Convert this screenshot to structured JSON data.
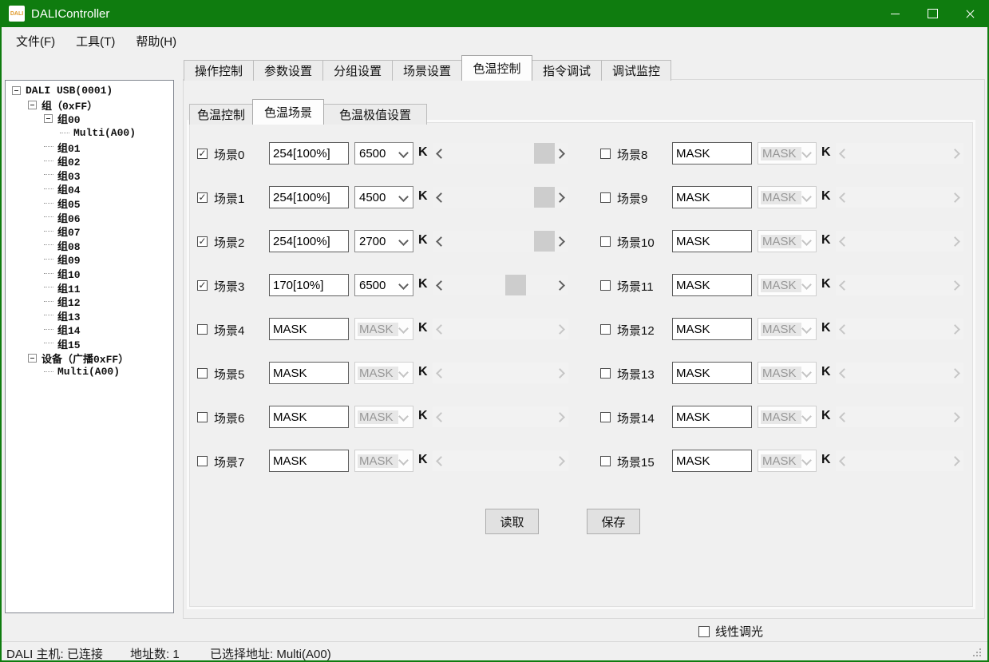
{
  "colors": {
    "title_green": "#0f7c0f"
  },
  "glyphs": {
    "check": "✓"
  },
  "titlebar": {
    "icon_text": "DALI",
    "title": "DALIController"
  },
  "menu": {
    "items": [
      "文件(F)",
      "工具(T)",
      "帮助(H)"
    ]
  },
  "tabs": {
    "active_index": 4,
    "items": [
      "操作控制",
      "参数设置",
      "分组设置",
      "场景设置",
      "色温控制",
      "指令调试",
      "调试监控"
    ]
  },
  "subtabs": {
    "active_index": 1,
    "items": [
      "色温控制",
      "色温场景",
      "色温极值设置"
    ]
  },
  "tree": {
    "items": [
      {
        "label": "DALI USB(0001)",
        "depth": 0,
        "expander": true
      },
      {
        "label": "组（0xFF）",
        "depth": 1,
        "expander": true
      },
      {
        "label": "组00",
        "depth": 2,
        "expander": true
      },
      {
        "label": "Multi(A00)",
        "depth": 3,
        "expander": false
      },
      {
        "label": "组01",
        "depth": 2,
        "expander": false
      },
      {
        "label": "组02",
        "depth": 2,
        "expander": false
      },
      {
        "label": "组03",
        "depth": 2,
        "expander": false
      },
      {
        "label": "组04",
        "depth": 2,
        "expander": false
      },
      {
        "label": "组05",
        "depth": 2,
        "expander": false
      },
      {
        "label": "组06",
        "depth": 2,
        "expander": false
      },
      {
        "label": "组07",
        "depth": 2,
        "expander": false
      },
      {
        "label": "组08",
        "depth": 2,
        "expander": false
      },
      {
        "label": "组09",
        "depth": 2,
        "expander": false
      },
      {
        "label": "组10",
        "depth": 2,
        "expander": false
      },
      {
        "label": "组11",
        "depth": 2,
        "expander": false
      },
      {
        "label": "组12",
        "depth": 2,
        "expander": false
      },
      {
        "label": "组13",
        "depth": 2,
        "expander": false
      },
      {
        "label": "组14",
        "depth": 2,
        "expander": false
      },
      {
        "label": "组15",
        "depth": 2,
        "expander": false
      },
      {
        "label": "设备（广播0xFF）",
        "depth": 1,
        "expander": true
      },
      {
        "label": "Multi(A00)",
        "depth": 2,
        "expander": false
      }
    ]
  },
  "scene_table": {
    "unit": "K",
    "scenes": [
      {
        "label": "场景0",
        "checked": true,
        "enabled": true,
        "value": "254[100%]",
        "cct": "6500",
        "slider_pos": 1
      },
      {
        "label": "场景1",
        "checked": true,
        "enabled": true,
        "value": "254[100%]",
        "cct": "4500",
        "slider_pos": 1
      },
      {
        "label": "场景2",
        "checked": true,
        "enabled": true,
        "value": "254[100%]",
        "cct": "2700",
        "slider_pos": 1
      },
      {
        "label": "场景3",
        "checked": true,
        "enabled": true,
        "value": "170[10%]",
        "cct": "6500",
        "slider_pos": 0.67
      },
      {
        "label": "场景4",
        "checked": false,
        "enabled": false,
        "value": "MASK",
        "cct": "MASK",
        "slider_pos": null
      },
      {
        "label": "场景5",
        "checked": false,
        "enabled": false,
        "value": "MASK",
        "cct": "MASK",
        "slider_pos": null
      },
      {
        "label": "场景6",
        "checked": false,
        "enabled": false,
        "value": "MASK",
        "cct": "MASK",
        "slider_pos": null
      },
      {
        "label": "场景7",
        "checked": false,
        "enabled": false,
        "value": "MASK",
        "cct": "MASK",
        "slider_pos": null
      },
      {
        "label": "场景8",
        "checked": false,
        "enabled": false,
        "value": "MASK",
        "cct": "MASK",
        "slider_pos": null
      },
      {
        "label": "场景9",
        "checked": false,
        "enabled": false,
        "value": "MASK",
        "cct": "MASK",
        "slider_pos": null
      },
      {
        "label": "场景10",
        "checked": false,
        "enabled": false,
        "value": "MASK",
        "cct": "MASK",
        "slider_pos": null
      },
      {
        "label": "场景11",
        "checked": false,
        "enabled": false,
        "value": "MASK",
        "cct": "MASK",
        "slider_pos": null
      },
      {
        "label": "场景12",
        "checked": false,
        "enabled": false,
        "value": "MASK",
        "cct": "MASK",
        "slider_pos": null
      },
      {
        "label": "场景13",
        "checked": false,
        "enabled": false,
        "value": "MASK",
        "cct": "MASK",
        "slider_pos": null
      },
      {
        "label": "场景14",
        "checked": false,
        "enabled": false,
        "value": "MASK",
        "cct": "MASK",
        "slider_pos": null
      },
      {
        "label": "场景15",
        "checked": false,
        "enabled": false,
        "value": "MASK",
        "cct": "MASK",
        "slider_pos": null
      }
    ]
  },
  "buttons": {
    "read": "读取",
    "save": "保存"
  },
  "footer": {
    "linear_dimming": "线性调光"
  },
  "statusbar": {
    "host": "DALI 主机: 已连接",
    "address_count": "地址数: 1",
    "selected_address": "已选择地址: Multi(A00)"
  }
}
